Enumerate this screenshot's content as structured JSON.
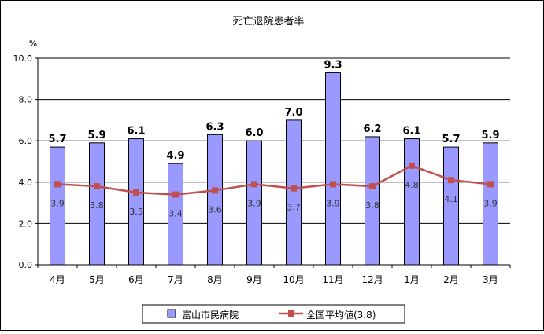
{
  "chart_data": {
    "type": "bar",
    "title": "死亡退院患者率",
    "unit_label": "%",
    "ylim": [
      0,
      10
    ],
    "y_ticks": [
      "0.0",
      "2.0",
      "4.0",
      "6.0",
      "8.0",
      "10.0"
    ],
    "y_tick_values": [
      0,
      2,
      4,
      6,
      8,
      10
    ],
    "grid": true,
    "legend_position": "bottom",
    "categories": [
      "4月",
      "5月",
      "6月",
      "7月",
      "8月",
      "9月",
      "10月",
      "11月",
      "12月",
      "1月",
      "2月",
      "3月"
    ],
    "series": [
      {
        "name": "富山市民病院",
        "type": "bar",
        "color": "#9999ff",
        "values": [
          5.7,
          5.9,
          6.1,
          4.9,
          6.3,
          6.0,
          7.0,
          9.3,
          6.2,
          6.1,
          5.7,
          5.9
        ],
        "labels": [
          "5.7",
          "5.9",
          "6.1",
          "4.9",
          "6.3",
          "6.0",
          "7.0",
          "9.3",
          "6.2",
          "6.1",
          "5.7",
          "5.9"
        ]
      },
      {
        "name": "全国平均値(3.8)",
        "type": "line",
        "color": "#c0504d",
        "values": [
          3.9,
          3.8,
          3.5,
          3.4,
          3.6,
          3.9,
          3.7,
          3.9,
          3.8,
          4.8,
          4.1,
          3.9
        ],
        "labels": [
          "3.9",
          "3.8",
          "3.5",
          "3.4",
          "3.6",
          "3.9",
          "3.7",
          "3.9",
          "3.8",
          "4.8",
          "4.1",
          "3.9"
        ]
      }
    ]
  }
}
